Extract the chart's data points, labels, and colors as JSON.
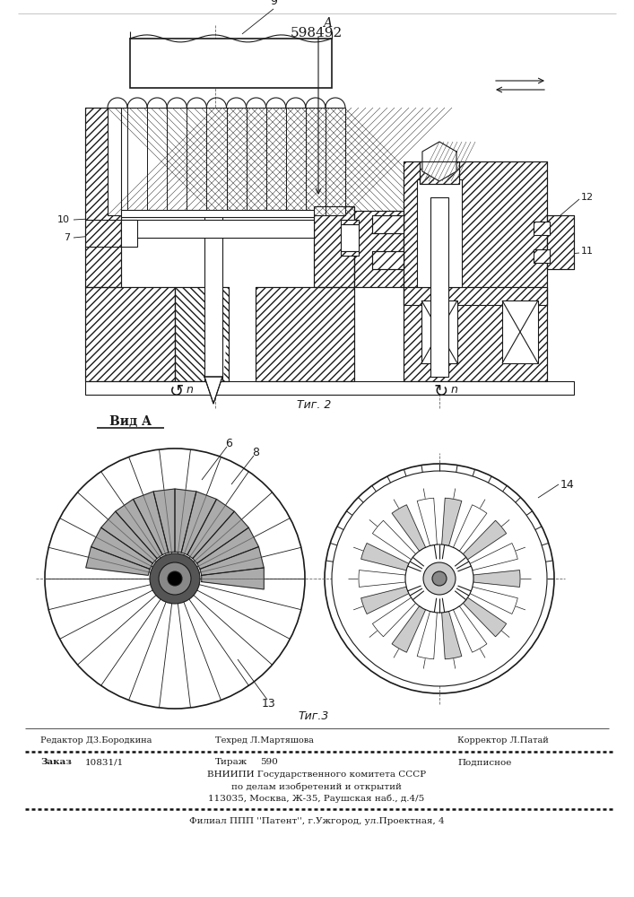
{
  "patent_number": "598492",
  "fig2_label": "Τиг. 2",
  "fig3_label": "Τиг.3",
  "vid_a_label": "Вид A",
  "editor_line1": "Редактор Д3.Бородкина   Техред Л.Мартяшова",
  "editor_line2": "Корректор Л.Патай",
  "order_word": "Заказ",
  "order_num": "10831/1",
  "tirazh_word": "Тираж",
  "tirazh_num": "590",
  "podp_word": "Подписное",
  "vniip_line": "ВНИИПИ Государственного комитета СССР",
  "affairs_line": "по делам изобретений и открытий",
  "address_line": "113035, Москва, Ж-35, Раушская наб., д.4/5",
  "filial_line": "Филиал ППП ''Патент'', г.Ужгород, ул.Проектная, 4",
  "bg_color": "#ffffff",
  "line_color": "#1a1a1a",
  "hatch_lw": 0.4,
  "fig2_fig3_label_fs": 9,
  "vid_a_fs": 10
}
